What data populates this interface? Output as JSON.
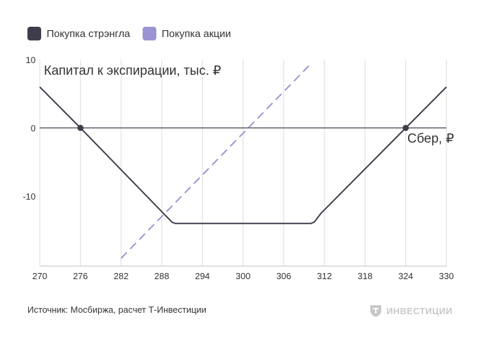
{
  "legend": {
    "items": [
      {
        "label": "Покупка стрэнгла",
        "color": "#3e3d4b"
      },
      {
        "label": "Покупка акции",
        "color": "#9b94d2"
      }
    ]
  },
  "source": "Источник: Мосбиржа, расчет Т-Инвестиции",
  "brand": {
    "name": "ИНВЕСТИЦИИ",
    "icon": "t-shield-logo"
  },
  "chart_data": {
    "type": "line",
    "title": "Капитал к экспирации, тыс. ₽",
    "xlabel": "Сбер, ₽",
    "ylabel": "",
    "xlim": [
      270,
      330
    ],
    "ylim": [
      -20.5,
      10
    ],
    "x_ticks": [
      "270",
      "276",
      "282",
      "288",
      "294",
      "300",
      "306",
      "312",
      "318",
      "324",
      "330"
    ],
    "y_ticks": [
      "10",
      "0",
      "-10"
    ],
    "y_tick_values": [
      10,
      0,
      -10
    ],
    "x_tick_values": [
      270,
      276,
      282,
      288,
      294,
      300,
      306,
      312,
      318,
      324,
      330
    ],
    "grid": {
      "vertical": true,
      "horizontal": false
    },
    "series": [
      {
        "name": "Покупка стрэнгла",
        "color": "#3e3d4b",
        "style": "solid",
        "x": [
          270,
          276,
          289.5,
          290,
          310,
          310.5,
          311.5,
          324,
          330
        ],
        "y": [
          6,
          0,
          -13.8,
          -14,
          -14,
          -13.8,
          -12.5,
          0,
          6
        ],
        "markers": [
          {
            "x": 276,
            "y": 0
          },
          {
            "x": 324,
            "y": 0
          }
        ]
      },
      {
        "name": "Покупка акции",
        "color": "#9b94d2",
        "style": "dashed",
        "x": [
          282,
          310
        ],
        "y": [
          -19.1,
          9.4
        ]
      }
    ]
  }
}
